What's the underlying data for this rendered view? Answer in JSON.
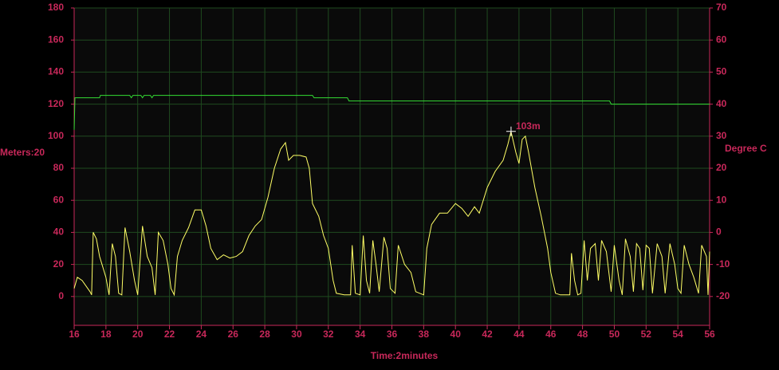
{
  "chart_data": {
    "type": "line",
    "xlabel": "Time:2minutes",
    "ylabel": "Meters:20",
    "y2label": "Degree C",
    "xlim": [
      16,
      56
    ],
    "xticks": [
      16,
      18,
      20,
      22,
      24,
      26,
      28,
      30,
      32,
      34,
      36,
      38,
      40,
      42,
      44,
      46,
      48,
      50,
      52,
      54,
      56
    ],
    "ylim": [
      -18,
      180
    ],
    "yticks": [
      0,
      20,
      40,
      60,
      80,
      100,
      120,
      140,
      160,
      180
    ],
    "y2lim": [
      -29,
      70
    ],
    "y2ticks": [
      -20,
      -10,
      0,
      10,
      20,
      30,
      40,
      50,
      60,
      70
    ],
    "grid": true,
    "grid_color": "#1f4a1f",
    "axis_color": "#c8285a",
    "background": "#0a0a0a",
    "series": [
      {
        "color": "#ffff66",
        "axis": "y",
        "x": [
          16.0,
          16.2,
          16.5,
          17.0,
          17.1,
          17.2,
          17.4,
          17.6,
          18.0,
          18.2,
          18.4,
          18.6,
          18.8,
          19.0,
          19.2,
          19.5,
          19.8,
          20.0,
          20.3,
          20.6,
          20.9,
          21.1,
          21.3,
          21.6,
          21.9,
          22.1,
          22.3,
          22.5,
          22.8,
          23.2,
          23.6,
          24.0,
          24.3,
          24.6,
          25.0,
          25.4,
          25.8,
          26.2,
          26.6,
          27.0,
          27.4,
          27.8,
          28.2,
          28.6,
          29.0,
          29.3,
          29.5,
          29.8,
          30.2,
          30.6,
          30.8,
          31.0,
          31.4,
          31.7,
          32.0,
          32.3,
          32.5,
          33.0,
          33.4,
          33.5,
          33.7,
          34.0,
          34.2,
          34.4,
          34.6,
          34.8,
          35.0,
          35.2,
          35.5,
          35.7,
          35.9,
          36.2,
          36.4,
          36.8,
          37.2,
          37.5,
          38.0,
          38.2,
          38.5,
          39.0,
          39.5,
          40.0,
          40.4,
          40.8,
          41.2,
          41.5,
          42.0,
          42.5,
          43.0,
          43.3,
          43.5,
          43.8,
          44.0,
          44.2,
          44.4,
          44.6,
          45.0,
          45.4,
          45.8,
          46.0,
          46.3,
          46.6,
          47.0,
          47.2,
          47.3,
          47.5,
          47.7,
          47.9,
          48.1,
          48.3,
          48.5,
          48.8,
          49.0,
          49.2,
          49.5,
          49.8,
          50.0,
          50.3,
          50.5,
          50.7,
          51.0,
          51.2,
          51.4,
          51.6,
          51.8,
          52.0,
          52.2,
          52.4,
          52.7,
          53.0,
          53.2,
          53.5,
          53.8,
          54.0,
          54.2,
          54.4,
          54.7,
          55.0,
          55.3,
          55.5,
          55.8,
          55.9,
          56.0
        ],
        "values": [
          5,
          12,
          10,
          3,
          1,
          40,
          36,
          25,
          12,
          1,
          33,
          25,
          2,
          1,
          43,
          28,
          10,
          1,
          44,
          25,
          18,
          1,
          40,
          35,
          20,
          5,
          1,
          25,
          35,
          43,
          54,
          54,
          44,
          30,
          23,
          26,
          24,
          25,
          28,
          38,
          44,
          48,
          62,
          80,
          92,
          96,
          85,
          88,
          88,
          87,
          80,
          58,
          50,
          38,
          30,
          10,
          2,
          1,
          1,
          32,
          2,
          1,
          38,
          10,
          2,
          35,
          20,
          3,
          37,
          30,
          5,
          2,
          32,
          20,
          15,
          3,
          1,
          30,
          45,
          52,
          52,
          58,
          55,
          50,
          56,
          52,
          68,
          78,
          85,
          95,
          103,
          90,
          83,
          98,
          100,
          90,
          68,
          50,
          30,
          15,
          2,
          1,
          1,
          1,
          27,
          10,
          1,
          2,
          35,
          10,
          30,
          33,
          10,
          35,
          28,
          3,
          32,
          10,
          1,
          36,
          25,
          3,
          33,
          30,
          4,
          32,
          30,
          2,
          33,
          25,
          2,
          33,
          20,
          5,
          2,
          32,
          20,
          12,
          2,
          32,
          25,
          1,
          28
        ]
      },
      {
        "color": "#33dd33",
        "axis": "y2",
        "x": [
          16.0,
          16.05,
          17.6,
          17.65,
          19.5,
          19.6,
          19.7,
          20.2,
          20.3,
          20.4,
          20.8,
          20.9,
          21.0,
          31.0,
          31.1,
          33.2,
          33.3,
          49.7,
          49.8,
          56.0
        ],
        "values": [
          32,
          42,
          42,
          42.75,
          42.75,
          42,
          42.75,
          42.75,
          42,
          42.75,
          42.75,
          42,
          42.75,
          42.75,
          42,
          42,
          41,
          41,
          40,
          40
        ]
      }
    ],
    "annotations": [
      {
        "text": "103m",
        "x": 43.5,
        "y": 103
      }
    ]
  }
}
